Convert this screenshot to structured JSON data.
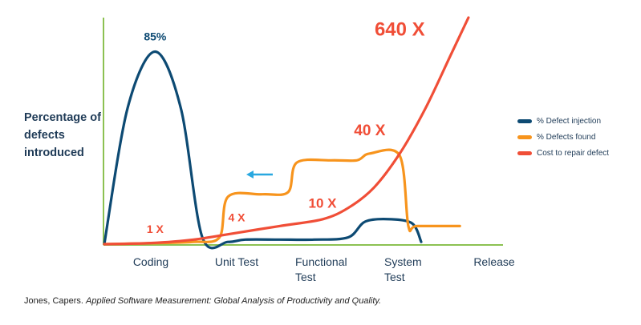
{
  "chart_data": {
    "type": "line",
    "ylabel": "Percentage of defects introduced",
    "categories": [
      "Coding",
      "Unit Test",
      "Functional Test",
      "System Test",
      "Release"
    ],
    "x_label_lines": [
      [
        "Coding"
      ],
      [
        "Unit Test"
      ],
      [
        "Functional",
        "Test"
      ],
      [
        "System",
        "Test"
      ],
      [
        "Release"
      ]
    ],
    "series": [
      {
        "name": "% Defect injection",
        "color": "#0d4a73",
        "x": [
          0,
          0.25,
          0.55,
          0.85,
          1.1,
          1.4,
          1.6,
          2.0,
          2.4,
          2.8,
          3.0,
          3.3,
          3.55,
          3.65
        ],
        "y": [
          0,
          60,
          85,
          60,
          3,
          1,
          2,
          2,
          2,
          3,
          10,
          11,
          9,
          1
        ]
      },
      {
        "name": "% Defects found",
        "color": "#f7941d",
        "x": [
          0,
          0.6,
          1.0,
          1.3,
          1.4,
          1.8,
          2.1,
          2.2,
          2.6,
          2.9,
          3.05,
          3.4,
          3.5,
          3.6,
          4.1
        ],
        "y": [
          0,
          0.5,
          1,
          3,
          21,
          22,
          23,
          36,
          37,
          37,
          40,
          39,
          8,
          8,
          8
        ]
      },
      {
        "name": "Cost to repair defect",
        "color": "#f04e37",
        "x": [
          0,
          0.5,
          1.0,
          1.5,
          2.0,
          2.5,
          2.8,
          3.1,
          3.4,
          3.7,
          4.0,
          4.2
        ],
        "y": [
          0,
          0.5,
          2,
          5,
          8,
          11,
          16,
          25,
          40,
          60,
          84,
          100
        ]
      }
    ],
    "annotations": [
      {
        "text": "85%",
        "x": 0.55,
        "y": 90,
        "color": "#0d4a73"
      },
      {
        "text": "1 X",
        "x": 0.55,
        "y": 5,
        "color": "#f04e37"
      },
      {
        "text": "4 X",
        "x": 1.5,
        "y": 10,
        "color": "#f04e37"
      },
      {
        "text": "10 X",
        "x": 2.5,
        "y": 16,
        "color": "#f04e37"
      },
      {
        "text": "40 X",
        "x": 3.05,
        "y": 48,
        "color": "#f04e37"
      },
      {
        "text": "640 X",
        "x": 3.4,
        "y": 92,
        "color": "#f04e37"
      }
    ],
    "xlim": [
      0,
      4.2
    ],
    "ylim": [
      0,
      100
    ],
    "grid": false,
    "legend_position": "right",
    "arrow_color": "#29a8e0",
    "axis_color": "#8cc152"
  },
  "citation": {
    "author": "Jones, Capers.",
    "title": "Applied Software Measurement: Global Analysis of Productivity and Quality."
  }
}
